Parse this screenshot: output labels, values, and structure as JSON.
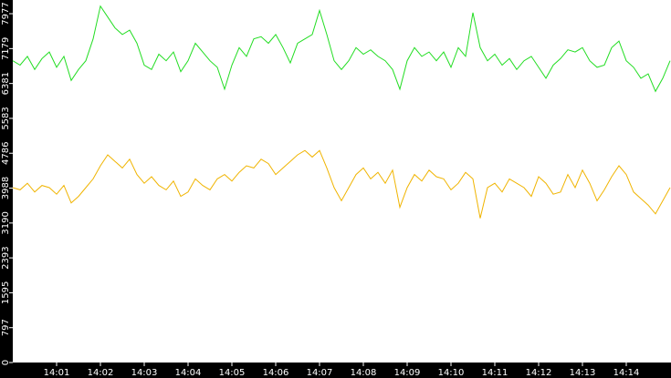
{
  "chart_data": {
    "type": "line",
    "categories": [
      null,
      null,
      null,
      null,
      null,
      null,
      "14:01",
      null,
      null,
      null,
      null,
      null,
      "14:02",
      null,
      null,
      null,
      null,
      null,
      "14:03",
      null,
      null,
      null,
      null,
      null,
      "14:04",
      null,
      null,
      null,
      null,
      null,
      "14:05",
      null,
      null,
      null,
      null,
      null,
      "14:06",
      null,
      null,
      null,
      null,
      null,
      "14:07",
      null,
      null,
      null,
      null,
      null,
      "14:08",
      null,
      null,
      null,
      null,
      null,
      "14:09",
      null,
      null,
      null,
      null,
      null,
      "14:10",
      null,
      null,
      null,
      null,
      null,
      "14:11",
      null,
      null,
      null,
      null,
      null,
      "14:12",
      null,
      null,
      null,
      null,
      null,
      "14:13",
      null,
      null,
      null,
      null,
      null,
      "14:14",
      null,
      null,
      null,
      null,
      null,
      null
    ],
    "series": [
      {
        "color": "#22dd22",
        "values": [
          6900,
          6800,
          7000,
          6700,
          6950,
          7100,
          6750,
          7000,
          6450,
          6700,
          6900,
          7400,
          8150,
          7900,
          7650,
          7500,
          7600,
          7300,
          6800,
          6700,
          7050,
          6900,
          7100,
          6650,
          6900,
          7300,
          7100,
          6900,
          6750,
          6250,
          6800,
          7200,
          7000,
          7400,
          7450,
          7300,
          7500,
          7200,
          6850,
          7300,
          7400,
          7500,
          8050,
          7500,
          6900,
          6700,
          6900,
          7200,
          7050,
          7150,
          7000,
          6900,
          6700,
          6250,
          6900,
          7200,
          7000,
          7100,
          6900,
          7100,
          6750,
          7200,
          7000,
          8000,
          7200,
          6900,
          7050,
          6800,
          6950,
          6700,
          6900,
          7000,
          6750,
          6500,
          6800,
          6950,
          7150,
          7100,
          7200,
          6900,
          6750,
          6800,
          7200,
          7350,
          6900,
          6750,
          6500,
          6600,
          6200,
          6500,
          6900
        ]
      },
      {
        "color": "#f0b400",
        "values": [
          4000,
          3950,
          4100,
          3900,
          4050,
          4000,
          3850,
          4050,
          3650,
          3800,
          4000,
          4200,
          4500,
          4750,
          4600,
          4450,
          4650,
          4300,
          4100,
          4250,
          4050,
          3950,
          4150,
          3800,
          3900,
          4200,
          4050,
          3950,
          4200,
          4300,
          4150,
          4350,
          4500,
          4450,
          4650,
          4550,
          4300,
          4450,
          4600,
          4750,
          4850,
          4700,
          4850,
          4450,
          4000,
          3700,
          4000,
          4300,
          4450,
          4200,
          4350,
          4100,
          4400,
          3550,
          4000,
          4300,
          4150,
          4400,
          4250,
          4200,
          3950,
          4100,
          4350,
          4200,
          3300,
          4000,
          4100,
          3900,
          4200,
          4100,
          4000,
          3800,
          4250,
          4100,
          3850,
          3900,
          4300,
          4000,
          4400,
          4100,
          3700,
          3950,
          4250,
          4500,
          4300,
          3900,
          3750,
          3600,
          3400,
          3700,
          4000
        ]
      }
    ],
    "ylim": [
      0,
      8290
    ],
    "yticks": [
      0,
      797,
      1595,
      2393,
      3190,
      3988,
      4786,
      5583,
      6381,
      7179,
      7977
    ]
  }
}
